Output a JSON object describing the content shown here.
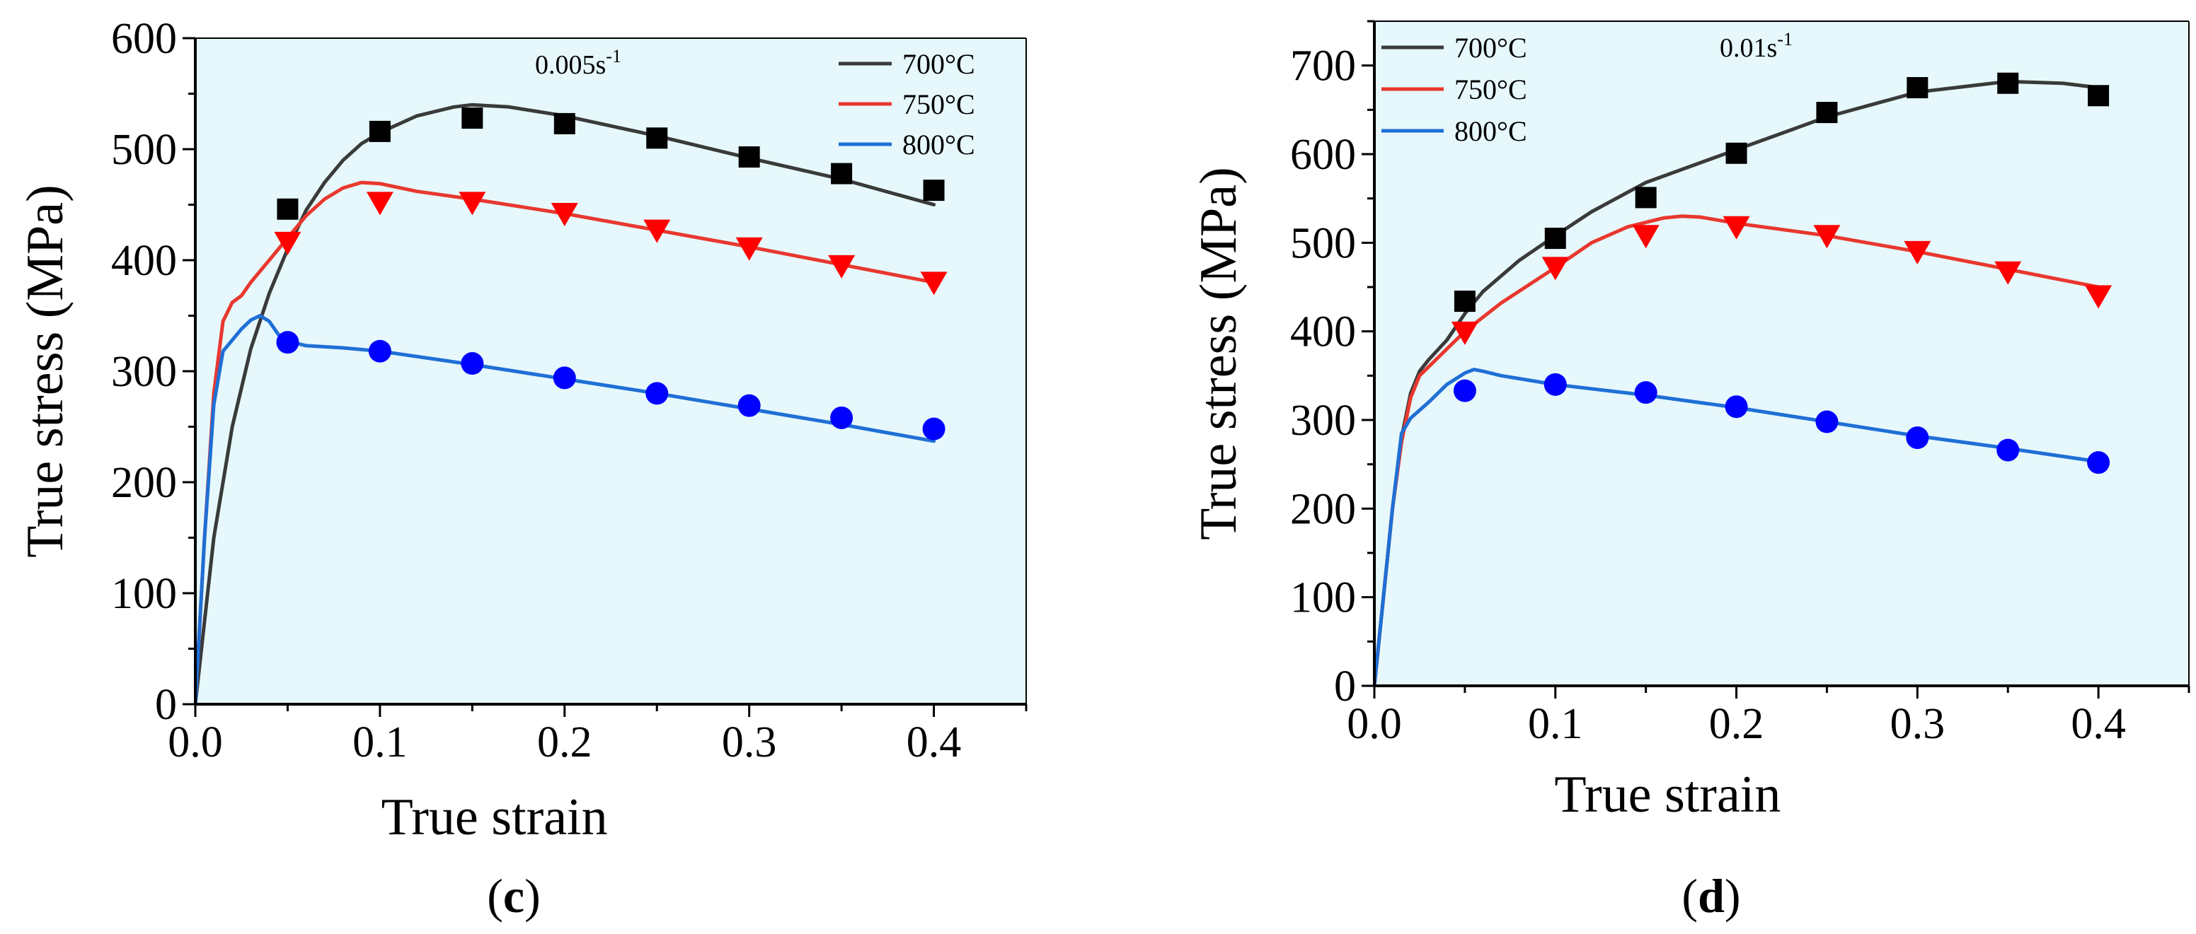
{
  "chart_data": [
    {
      "type": "line",
      "panel_label": "c",
      "xlabel": "True strain",
      "ylabel": "True stress (MPa)",
      "xlim": [
        0,
        0.45
      ],
      "ylim": [
        0,
        600
      ],
      "xticks": [
        "0.0",
        "0.1",
        "0.2",
        "0.3",
        "0.4"
      ],
      "yticks": [
        "0",
        "100",
        "200",
        "300",
        "400",
        "500",
        "600"
      ],
      "annotation": {
        "base": "0.005s",
        "sup": "-1"
      },
      "legend_position": "top-right",
      "background": "#e6f8fb",
      "series": [
        {
          "name": "700°C",
          "color": "#3a3a3a",
          "marker": "square",
          "marker_color": "#000000",
          "curve": [
            [
              0,
              0
            ],
            [
              0.01,
              150
            ],
            [
              0.02,
              250
            ],
            [
              0.03,
              320
            ],
            [
              0.04,
              370
            ],
            [
              0.05,
              410
            ],
            [
              0.06,
              445
            ],
            [
              0.07,
              470
            ],
            [
              0.08,
              490
            ],
            [
              0.09,
              505
            ],
            [
              0.1,
              515
            ],
            [
              0.12,
              530
            ],
            [
              0.14,
              538
            ],
            [
              0.15,
              540
            ],
            [
              0.17,
              538
            ],
            [
              0.2,
              530
            ],
            [
              0.25,
              512
            ],
            [
              0.3,
              492
            ],
            [
              0.35,
              473
            ],
            [
              0.4,
              450
            ]
          ],
          "points": [
            [
              0.05,
              446
            ],
            [
              0.1,
              516
            ],
            [
              0.15,
              528
            ],
            [
              0.2,
              523
            ],
            [
              0.25,
              510
            ],
            [
              0.3,
              493
            ],
            [
              0.35,
              478
            ],
            [
              0.4,
              463
            ]
          ]
        },
        {
          "name": "750°C",
          "color": "#e8382f",
          "marker": "triangle-down",
          "marker_color": "#ff0000",
          "curve": [
            [
              0,
              0
            ],
            [
              0.005,
              150
            ],
            [
              0.01,
              280
            ],
            [
              0.015,
              345
            ],
            [
              0.02,
              362
            ],
            [
              0.025,
              368
            ],
            [
              0.03,
              380
            ],
            [
              0.04,
              400
            ],
            [
              0.05,
              420
            ],
            [
              0.06,
              440
            ],
            [
              0.07,
              455
            ],
            [
              0.08,
              465
            ],
            [
              0.09,
              470
            ],
            [
              0.1,
              469
            ],
            [
              0.12,
              462
            ],
            [
              0.15,
              455
            ],
            [
              0.2,
              442
            ],
            [
              0.25,
              427
            ],
            [
              0.3,
              412
            ],
            [
              0.35,
              396
            ],
            [
              0.4,
              380
            ]
          ],
          "points": [
            [
              0.05,
              416
            ],
            [
              0.1,
              452
            ],
            [
              0.15,
              452
            ],
            [
              0.2,
              442
            ],
            [
              0.25,
              427
            ],
            [
              0.3,
              411
            ],
            [
              0.35,
              395
            ],
            [
              0.4,
              380
            ]
          ]
        },
        {
          "name": "800°C",
          "color": "#1f6fd6",
          "marker": "circle",
          "marker_color": "#0000ff",
          "curve": [
            [
              0,
              0
            ],
            [
              0.005,
              150
            ],
            [
              0.01,
              270
            ],
            [
              0.015,
              318
            ],
            [
              0.02,
              328
            ],
            [
              0.025,
              338
            ],
            [
              0.03,
              346
            ],
            [
              0.035,
              350
            ],
            [
              0.04,
              345
            ],
            [
              0.045,
              333
            ],
            [
              0.05,
              327
            ],
            [
              0.06,
              323
            ],
            [
              0.08,
              321
            ],
            [
              0.1,
              318
            ],
            [
              0.15,
              306
            ],
            [
              0.2,
              293
            ],
            [
              0.25,
              280
            ],
            [
              0.3,
              266
            ],
            [
              0.35,
              252
            ],
            [
              0.4,
              237
            ]
          ],
          "points": [
            [
              0.05,
              326
            ],
            [
              0.1,
              318
            ],
            [
              0.15,
              307
            ],
            [
              0.2,
              294
            ],
            [
              0.25,
              280
            ],
            [
              0.3,
              269
            ],
            [
              0.35,
              258
            ],
            [
              0.4,
              248
            ]
          ]
        }
      ]
    },
    {
      "type": "line",
      "panel_label": "d",
      "xlabel": "True strain",
      "ylabel": "True stress (MPa)",
      "xlim": [
        0,
        0.45
      ],
      "ylim": [
        0,
        750
      ],
      "xticks": [
        "0.0",
        "0.1",
        "0.2",
        "0.3",
        "0.4"
      ],
      "yticks": [
        "0",
        "100",
        "200",
        "300",
        "400",
        "500",
        "600",
        "700"
      ],
      "annotation": {
        "base": "0.01s",
        "sup": "-1"
      },
      "legend_position": "top-left",
      "background": "#e6f8fb",
      "series": [
        {
          "name": "700°C",
          "color": "#3a3a3a",
          "marker": "square",
          "marker_color": "#000000",
          "curve": [
            [
              0,
              0
            ],
            [
              0.005,
              100
            ],
            [
              0.01,
              200
            ],
            [
              0.015,
              280
            ],
            [
              0.02,
              330
            ],
            [
              0.025,
              355
            ],
            [
              0.03,
              368
            ],
            [
              0.04,
              390
            ],
            [
              0.05,
              420
            ],
            [
              0.06,
              445
            ],
            [
              0.08,
              480
            ],
            [
              0.1,
              508
            ],
            [
              0.12,
              535
            ],
            [
              0.15,
              568
            ],
            [
              0.2,
              605
            ],
            [
              0.25,
              642
            ],
            [
              0.3,
              670
            ],
            [
              0.35,
              682
            ],
            [
              0.38,
              680
            ],
            [
              0.4,
              675
            ]
          ],
          "points": [
            [
              0.05,
              434
            ],
            [
              0.1,
              505
            ],
            [
              0.15,
              551
            ],
            [
              0.2,
              601
            ],
            [
              0.25,
              647
            ],
            [
              0.3,
              675
            ],
            [
              0.35,
              680
            ],
            [
              0.4,
              666
            ]
          ]
        },
        {
          "name": "750°C",
          "color": "#e8382f",
          "marker": "triangle-down",
          "marker_color": "#ff0000",
          "curve": [
            [
              0,
              0
            ],
            [
              0.005,
              100
            ],
            [
              0.01,
              200
            ],
            [
              0.015,
              275
            ],
            [
              0.02,
              325
            ],
            [
              0.025,
              350
            ],
            [
              0.03,
              360
            ],
            [
              0.04,
              380
            ],
            [
              0.05,
              400
            ],
            [
              0.07,
              432
            ],
            [
              0.1,
              472
            ],
            [
              0.12,
              500
            ],
            [
              0.14,
              518
            ],
            [
              0.16,
              528
            ],
            [
              0.17,
              530
            ],
            [
              0.18,
              529
            ],
            [
              0.2,
              522
            ],
            [
              0.25,
              508
            ],
            [
              0.3,
              490
            ],
            [
              0.35,
              470
            ],
            [
              0.4,
              450
            ]
          ],
          "points": [
            [
              0.05,
              399
            ],
            [
              0.1,
              472
            ],
            [
              0.15,
              508
            ],
            [
              0.2,
              518
            ],
            [
              0.25,
              508
            ],
            [
              0.3,
              490
            ],
            [
              0.35,
              467
            ],
            [
              0.4,
              440
            ]
          ]
        },
        {
          "name": "800°C",
          "color": "#1f6fd6",
          "marker": "circle",
          "marker_color": "#0000ff",
          "curve": [
            [
              0,
              0
            ],
            [
              0.005,
              100
            ],
            [
              0.01,
              200
            ],
            [
              0.015,
              285
            ],
            [
              0.02,
              302
            ],
            [
              0.03,
              320
            ],
            [
              0.04,
              340
            ],
            [
              0.05,
              353
            ],
            [
              0.055,
              357
            ],
            [
              0.06,
              355
            ],
            [
              0.07,
              350
            ],
            [
              0.1,
              340
            ],
            [
              0.15,
              328
            ],
            [
              0.2,
              314
            ],
            [
              0.25,
              298
            ],
            [
              0.3,
              282
            ],
            [
              0.35,
              268
            ],
            [
              0.4,
              253
            ]
          ],
          "points": [
            [
              0.05,
              333
            ],
            [
              0.1,
              340
            ],
            [
              0.15,
              331
            ],
            [
              0.2,
              315
            ],
            [
              0.25,
              298
            ],
            [
              0.3,
              280
            ],
            [
              0.35,
              266
            ],
            [
              0.4,
              252
            ]
          ]
        }
      ]
    }
  ]
}
